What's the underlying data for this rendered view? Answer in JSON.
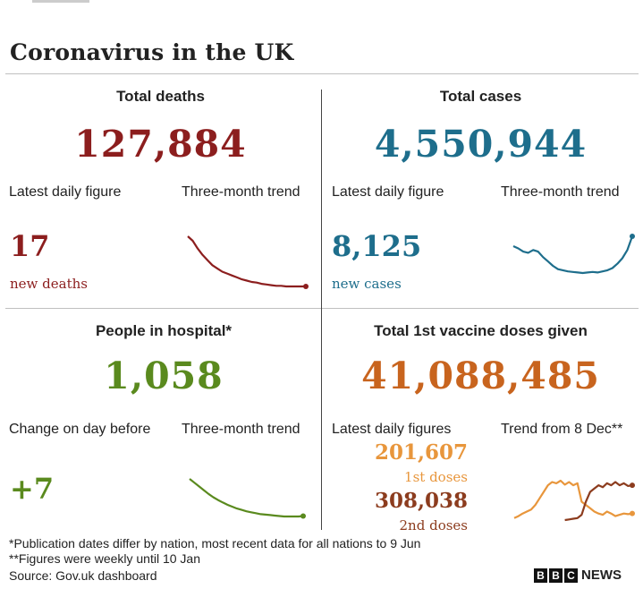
{
  "title": "Coronavirus in the UK",
  "colors": {
    "deaths": "#8c1e1e",
    "cases": "#1e6e8c",
    "hospital": "#5a8a1e",
    "vaccine": "#c8641e",
    "vaccine_first": "#e8963c",
    "vaccine_second": "#8c3c1e"
  },
  "deaths": {
    "title": "Total deaths",
    "total": "127,884",
    "left_label": "Latest daily figure",
    "right_label": "Three-month trend",
    "daily": "17",
    "daily_caption": "new deaths"
  },
  "cases": {
    "title": "Total cases",
    "total": "4,550,944",
    "left_label": "Latest daily figure",
    "right_label": "Three-month trend",
    "daily": "8,125",
    "daily_caption": "new cases"
  },
  "hospital": {
    "title": "People in hospital*",
    "total": "1,058",
    "left_label": "Change on day before",
    "right_label": "Three-month trend",
    "daily": "+7"
  },
  "vaccine": {
    "title": "Total 1st vaccine doses given",
    "total": "41,088,485",
    "left_label": "Latest daily figures",
    "right_label": "Trend from 8 Dec**",
    "first_value": "201,607",
    "first_caption": "1st doses",
    "second_value": "308,038",
    "second_caption": "2nd doses"
  },
  "footnotes": {
    "note1": "*Publication dates differ by nation, most recent data for all nations to 9 Jun",
    "note2": "**Figures were weekly until 10 Jan",
    "source": "Source: Gov.uk dashboard"
  },
  "brand": {
    "letters": [
      "B",
      "B",
      "C"
    ],
    "word": "NEWS"
  },
  "chart_data": [
    {
      "type": "line",
      "name": "deaths-trend",
      "series": [
        {
          "values": [
            95,
            88,
            76,
            66,
            58,
            50,
            45,
            40,
            37,
            34,
            31,
            28,
            26,
            24,
            23,
            21,
            20,
            19,
            18,
            18,
            17,
            17,
            17,
            17,
            17
          ]
        }
      ]
    },
    {
      "type": "line",
      "name": "cases-trend",
      "series": [
        {
          "values": [
            62,
            58,
            52,
            50,
            55,
            52,
            42,
            34,
            26,
            20,
            18,
            16,
            15,
            14,
            13,
            14,
            15,
            14,
            16,
            18,
            22,
            30,
            40,
            55,
            80
          ]
        }
      ]
    },
    {
      "type": "line",
      "name": "hospital-trend",
      "series": [
        {
          "values": [
            100,
            92,
            84,
            76,
            68,
            61,
            55,
            50,
            45,
            41,
            37,
            34,
            31,
            29,
            27,
            25,
            24,
            23,
            22,
            21,
            20,
            20,
            20,
            20,
            21
          ]
        }
      ]
    },
    {
      "type": "line",
      "name": "vaccine-trend",
      "series": [
        {
          "name": "1st doses",
          "values": [
            5,
            8,
            12,
            15,
            18,
            25,
            35,
            45,
            55,
            60,
            58,
            62,
            56,
            60,
            55,
            58,
            30,
            25,
            20,
            15,
            12,
            10,
            15,
            12,
            8,
            10,
            12,
            11,
            12
          ]
        },
        {
          "name": "2nd doses",
          "values": [
            null,
            null,
            null,
            null,
            null,
            null,
            null,
            null,
            null,
            null,
            null,
            null,
            2,
            3,
            4,
            5,
            10,
            30,
            45,
            50,
            55,
            52,
            58,
            55,
            60,
            55,
            58,
            54,
            55
          ]
        }
      ]
    }
  ]
}
